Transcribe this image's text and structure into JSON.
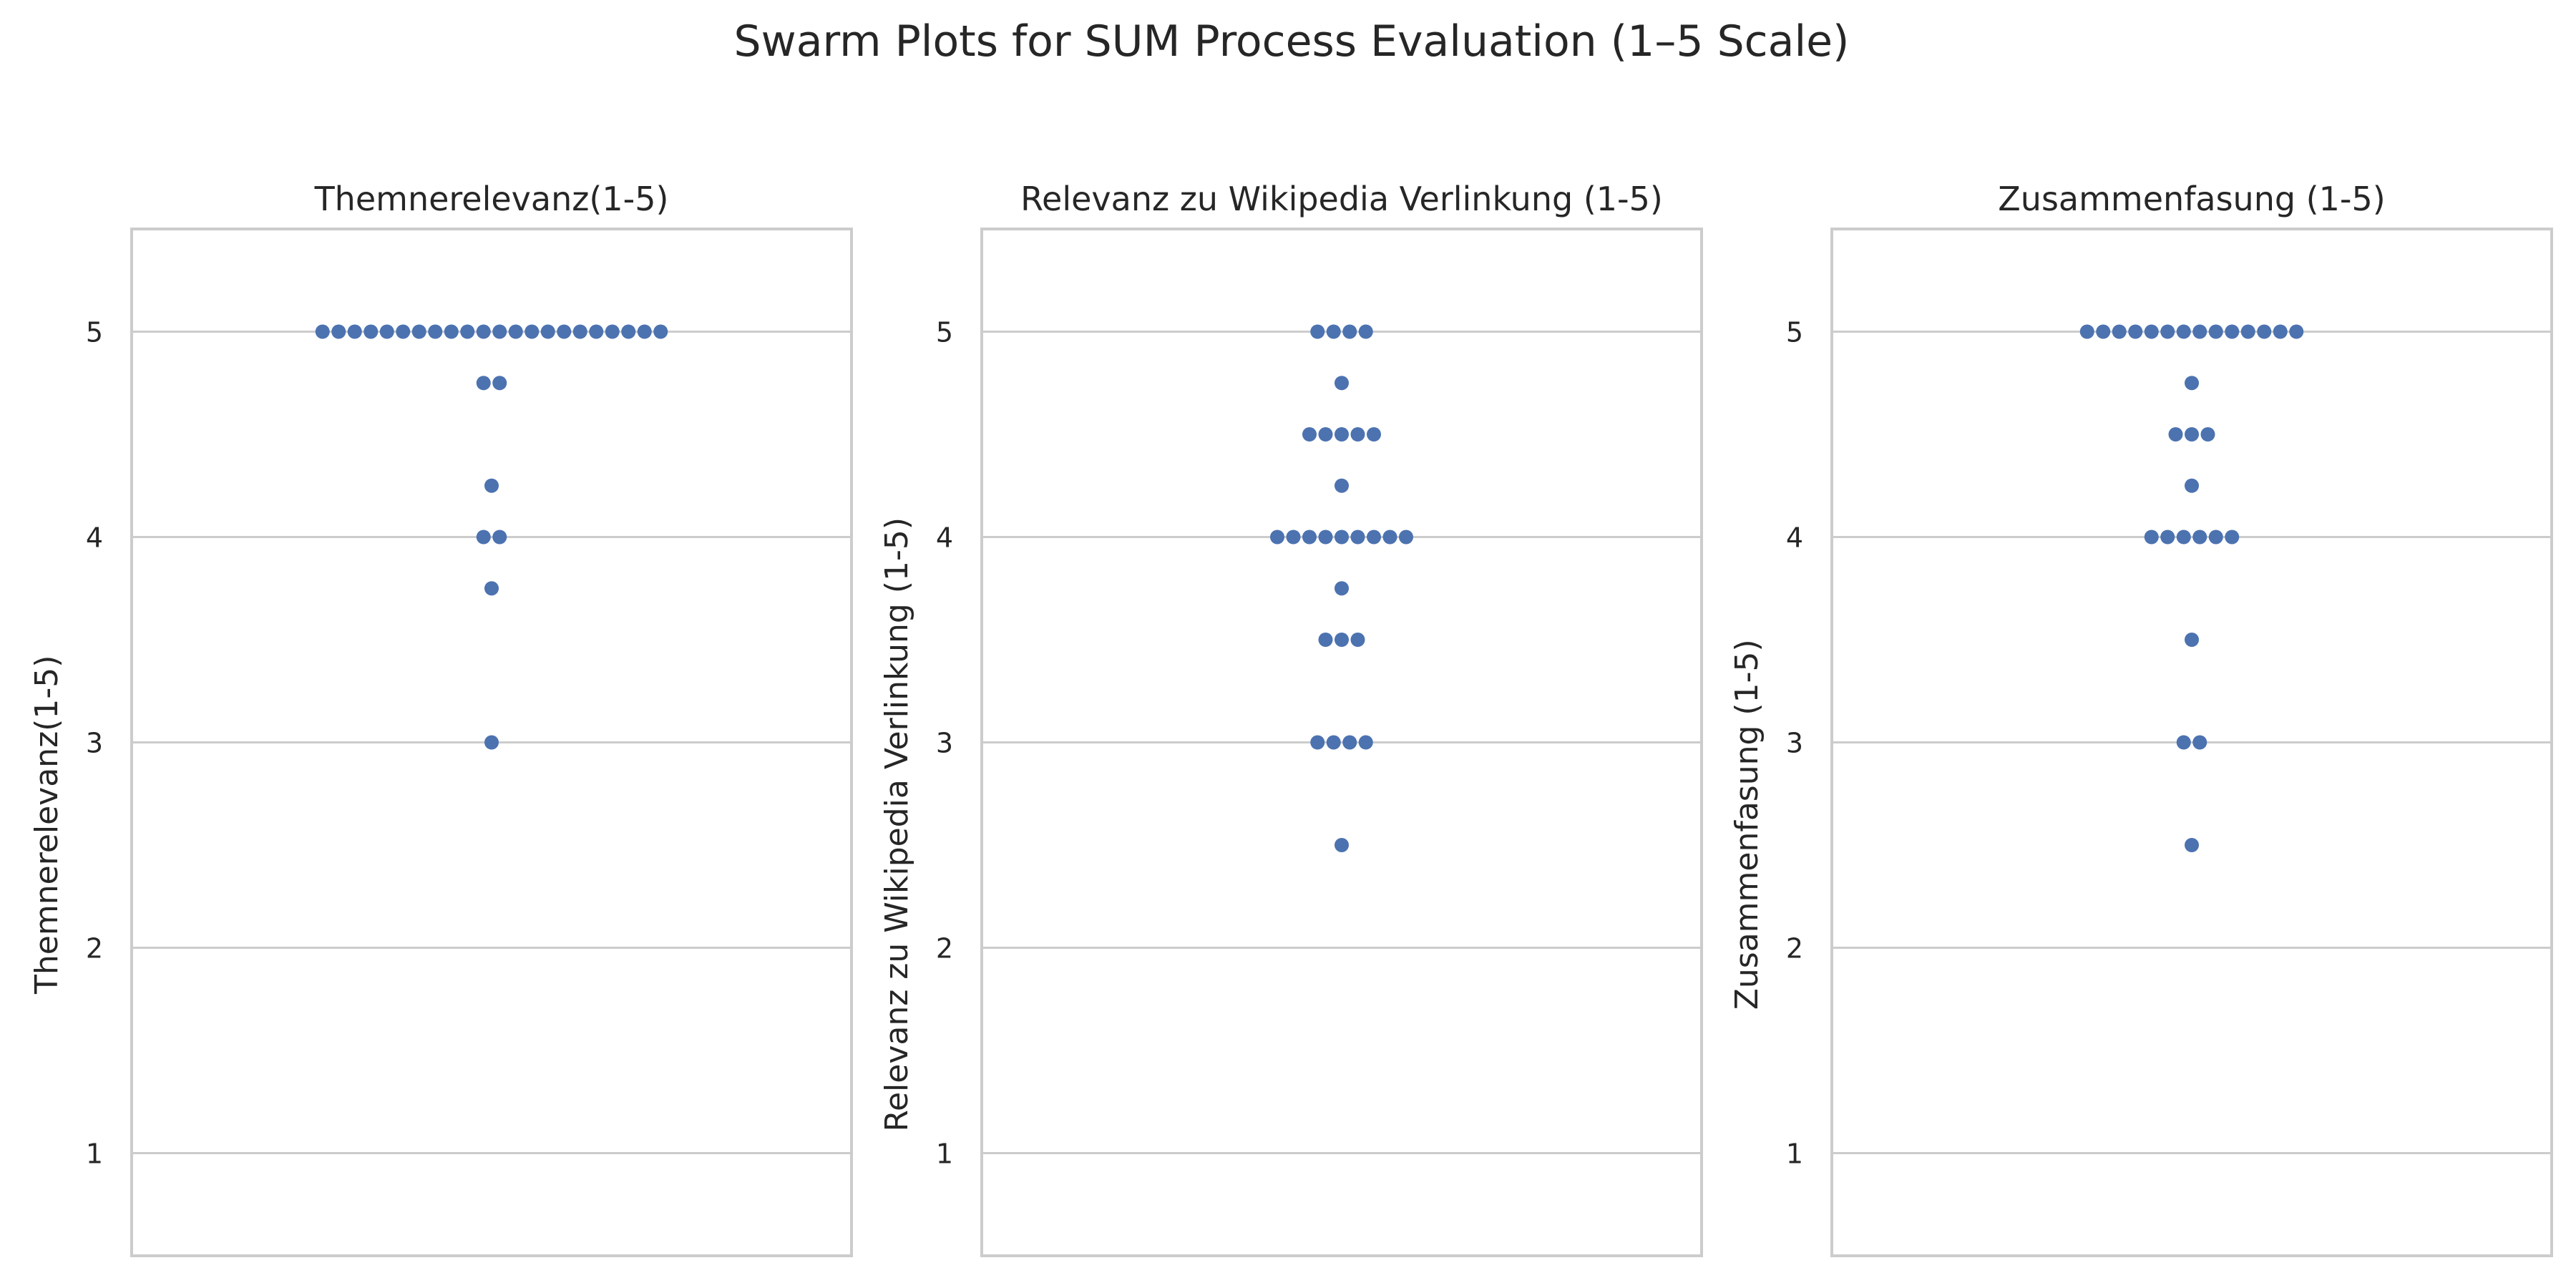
{
  "suptitle": "Swarm Plots for SUM Process Evaluation (1–5 Scale)",
  "colors": {
    "point": "#4c72b0",
    "grid": "#cccccc",
    "frame": "#cccccc",
    "text": "#262626",
    "background": "#ffffff"
  },
  "chart_data": [
    {
      "type": "scatter",
      "subtype": "swarm",
      "title": "Themnerelevanz(1-5)",
      "xlabel": "",
      "ylabel": "Themnerelevanz(1-5)",
      "ylim": [
        0.5,
        5.5
      ],
      "yticks": [
        "1",
        "2",
        "3",
        "4",
        "5"
      ],
      "grid": true,
      "series": [
        {
          "values": [
            5,
            5,
            5,
            5,
            5,
            5,
            5,
            5,
            5,
            5,
            5,
            5,
            5,
            5,
            5,
            5,
            5,
            5,
            5,
            5,
            5,
            5,
            4.75,
            4.75,
            4.25,
            4,
            4,
            3.75,
            3
          ]
        }
      ]
    },
    {
      "type": "scatter",
      "subtype": "swarm",
      "title": "Relevanz zu Wikipedia Verlinkung (1-5)",
      "xlabel": "",
      "ylabel": "Relevanz zu Wikipedia Verlinkung (1-5)",
      "ylim": [
        0.5,
        5.5
      ],
      "yticks": [
        "1",
        "2",
        "3",
        "4",
        "5"
      ],
      "grid": true,
      "series": [
        {
          "values": [
            5,
            5,
            5,
            5,
            4.75,
            4.5,
            4.5,
            4.5,
            4.5,
            4.5,
            4.25,
            4,
            4,
            4,
            4,
            4,
            4,
            4,
            4,
            4,
            3.75,
            3.5,
            3.5,
            3.5,
            3,
            3,
            3,
            3,
            2.5
          ]
        }
      ]
    },
    {
      "type": "scatter",
      "subtype": "swarm",
      "title": "Zusammenfasung (1-5)",
      "xlabel": "",
      "ylabel": "Zusammenfasung (1-5)",
      "ylim": [
        0.5,
        5.5
      ],
      "yticks": [
        "1",
        "2",
        "3",
        "4",
        "5"
      ],
      "grid": true,
      "series": [
        {
          "values": [
            5,
            5,
            5,
            5,
            5,
            5,
            5,
            5,
            5,
            5,
            5,
            5,
            5,
            5,
            4.75,
            4.5,
            4.5,
            4.5,
            4.25,
            4,
            4,
            4,
            4,
            4,
            4,
            3.5,
            3,
            3,
            2.5
          ]
        }
      ]
    }
  ]
}
